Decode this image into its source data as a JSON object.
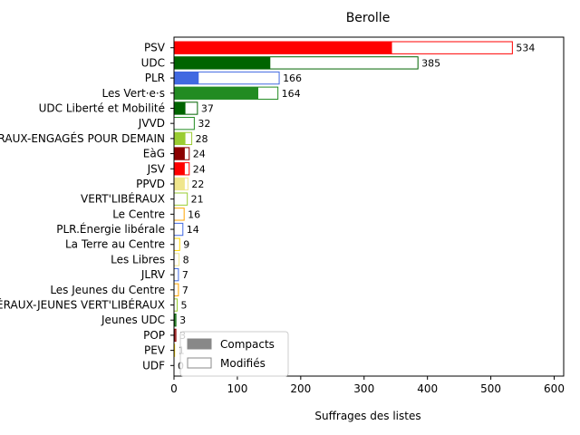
{
  "chart_data": {
    "type": "bar",
    "orientation": "horizontal",
    "title": "Berolle",
    "xlabel": "Suffrages des listes",
    "ylabel": "",
    "xlim": [
      0,
      615
    ],
    "xticks": [
      0,
      100,
      200,
      300,
      400,
      500,
      600
    ],
    "grid": false,
    "legend_position": "lower-left",
    "legend": [
      {
        "label": "Compacts",
        "style": "filled",
        "color": "#888888"
      },
      {
        "label": "Modifiés",
        "style": "outline",
        "color": "#888888"
      }
    ],
    "categories": [
      "PSV",
      "UDC",
      "PLR",
      "Les Vert·e·s",
      "UDC Liberté et Mobilité",
      "JVVD",
      "VERT'LIBÉRAUX-ENGAGÉS POUR DEMAIN",
      "EàG",
      "JSV",
      "PPVD",
      "VERT'LIBÉRAUX",
      "Le Centre",
      "PLR.Énergie libérale",
      "La Terre au Centre",
      "Les Libres",
      "JLRV",
      "Les Jeunes du Centre",
      "VERT'LIBÉRAUX-JEUNES VERT'LIBÉRAUX",
      "Jeunes UDC",
      "POP",
      "PEV",
      "UDF"
    ],
    "series": [
      {
        "name": "Compacts",
        "values": [
          344,
          152,
          39,
          133,
          18,
          0,
          18,
          17,
          17,
          17,
          0,
          0,
          0,
          0,
          0,
          0,
          0,
          0,
          2,
          2,
          0,
          0
        ]
      },
      {
        "name": "Modifiés",
        "values": [
          534,
          385,
          166,
          164,
          37,
          32,
          28,
          24,
          24,
          22,
          21,
          16,
          14,
          9,
          8,
          7,
          7,
          5,
          3,
          3,
          1,
          0
        ]
      }
    ],
    "value_labels": [
      "534",
      "385",
      "166",
      "164",
      "37",
      "32",
      "28",
      "24",
      "24",
      "22",
      "21",
      "16",
      "14",
      "9",
      "8",
      "7",
      "7",
      "5",
      "3",
      "3",
      "1",
      "0"
    ],
    "colors": [
      "#ff0000",
      "#006400",
      "#4169e1",
      "#228b22",
      "#006400",
      "#228b22",
      "#9acd32",
      "#8b0000",
      "#ff0000",
      "#f0e68c",
      "#9acd32",
      "#ffa500",
      "#4169e1",
      "#ffd700",
      "#f0e68c",
      "#4169e1",
      "#ffa500",
      "#9acd32",
      "#006400",
      "#8b0000",
      "#ffd700",
      "#8b4513"
    ]
  }
}
